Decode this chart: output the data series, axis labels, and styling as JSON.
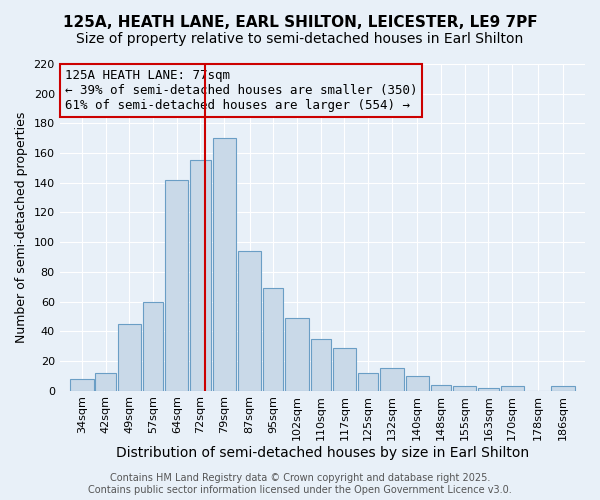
{
  "title": "125A, HEATH LANE, EARL SHILTON, LEICESTER, LE9 7PF",
  "subtitle": "Size of property relative to semi-detached houses in Earl Shilton",
  "xlabel": "Distribution of semi-detached houses by size in Earl Shilton",
  "ylabel": "Number of semi-detached properties",
  "bin_labels": [
    "34sqm",
    "42sqm",
    "49sqm",
    "57sqm",
    "64sqm",
    "72sqm",
    "79sqm",
    "87sqm",
    "95sqm",
    "102sqm",
    "110sqm",
    "117sqm",
    "125sqm",
    "132sqm",
    "140sqm",
    "148sqm",
    "155sqm",
    "163sqm",
    "170sqm",
    "178sqm",
    "186sqm"
  ],
  "bin_edges": [
    34,
    42,
    49,
    57,
    64,
    72,
    79,
    87,
    95,
    102,
    110,
    117,
    125,
    132,
    140,
    148,
    155,
    163,
    170,
    178,
    186,
    194
  ],
  "bar_heights": [
    8,
    12,
    45,
    60,
    142,
    155,
    170,
    94,
    69,
    49,
    35,
    29,
    12,
    15,
    10,
    4,
    3,
    2,
    3,
    0,
    3
  ],
  "bar_color": "#c9d9e8",
  "bar_edge_color": "#6a9ec5",
  "property_size": 77,
  "vline_color": "#cc0000",
  "annotation_text": "125A HEATH LANE: 77sqm\n← 39% of semi-detached houses are smaller (350)\n61% of semi-detached houses are larger (554) →",
  "annotation_box_color": "#cc0000",
  "bg_color": "#e8f0f8",
  "ylim": [
    0,
    220
  ],
  "yticks": [
    0,
    20,
    40,
    60,
    80,
    100,
    120,
    140,
    160,
    180,
    200,
    220
  ],
  "footer": "Contains HM Land Registry data © Crown copyright and database right 2025.\nContains public sector information licensed under the Open Government Licence v3.0.",
  "title_fontsize": 11,
  "subtitle_fontsize": 10,
  "ylabel_fontsize": 9,
  "xlabel_fontsize": 10,
  "tick_fontsize": 8,
  "annotation_fontsize": 9,
  "footer_fontsize": 7
}
